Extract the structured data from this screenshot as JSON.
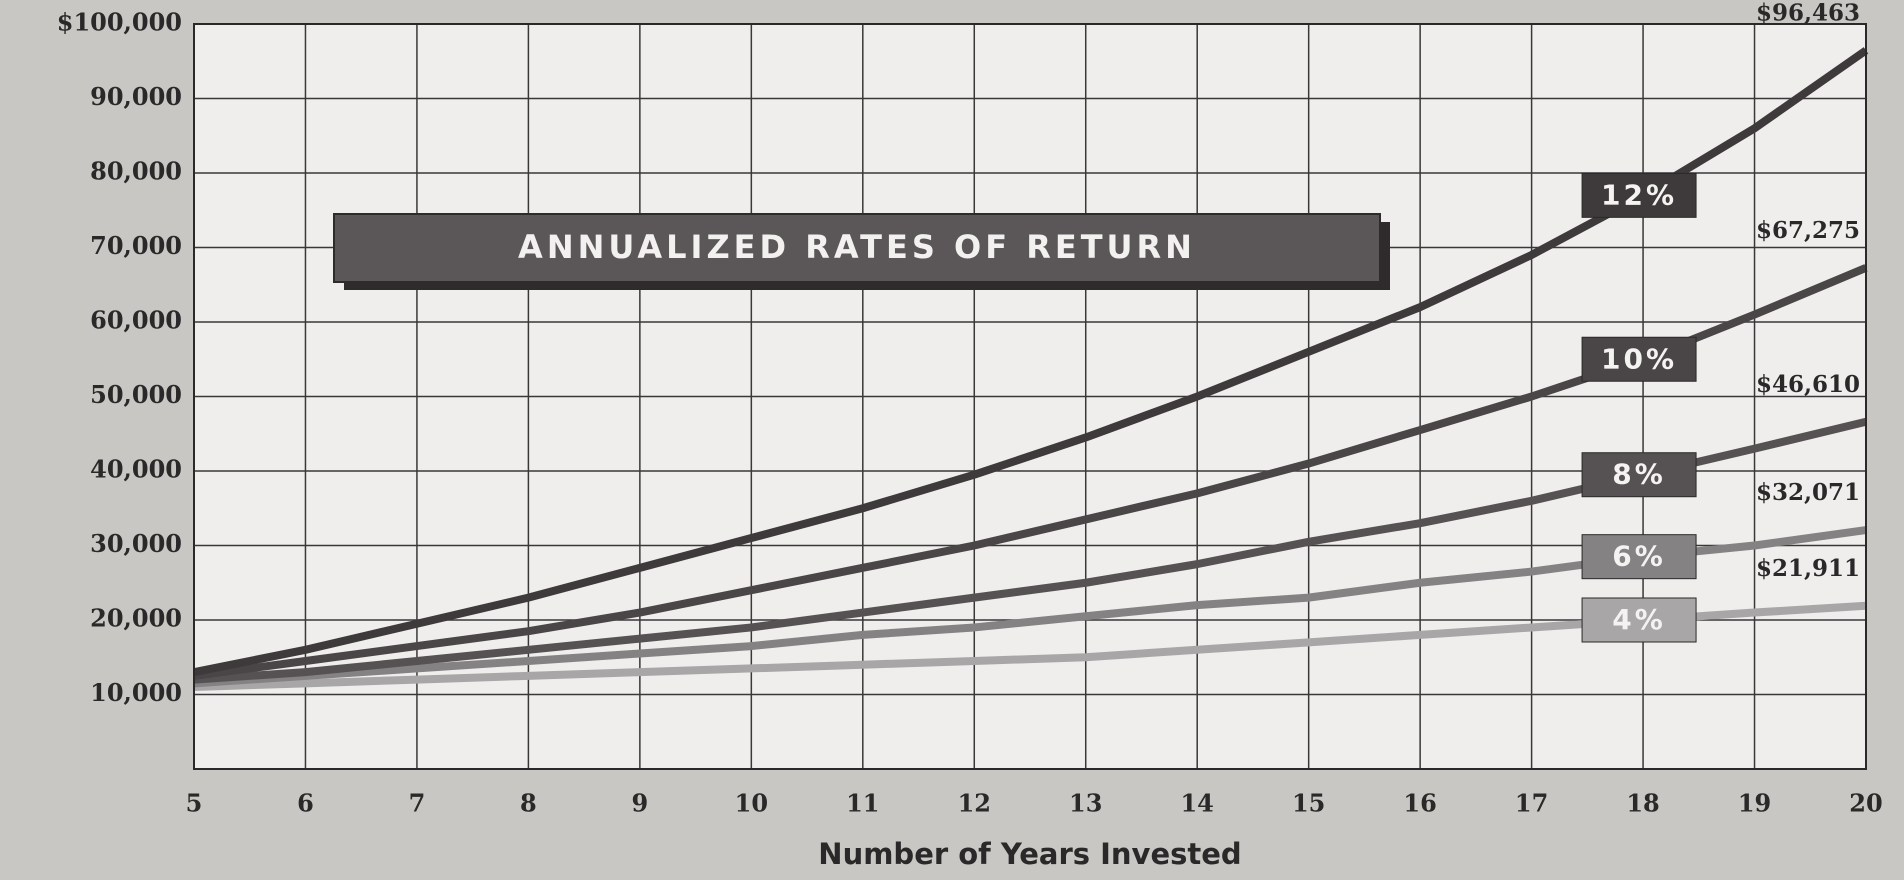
{
  "chart_data": {
    "type": "line",
    "title": "ANNUALIZED RATES OF RETURN",
    "x_label": "Number of Years Invested",
    "x": [
      5,
      6,
      7,
      8,
      9,
      10,
      11,
      12,
      13,
      14,
      15,
      16,
      17,
      18,
      19,
      20
    ],
    "xlim": [
      5,
      20
    ],
    "xticks": [
      5,
      6,
      7,
      8,
      9,
      10,
      11,
      12,
      13,
      14,
      15,
      16,
      17,
      18,
      19,
      20
    ],
    "ylim": [
      0,
      100000
    ],
    "yticks": [
      {
        "value": 10000,
        "label": "10,000"
      },
      {
        "value": 20000,
        "label": "20,000"
      },
      {
        "value": 30000,
        "label": "30,000"
      },
      {
        "value": 40000,
        "label": "40,000"
      },
      {
        "value": 50000,
        "label": "50,000"
      },
      {
        "value": 60000,
        "label": "60,000"
      },
      {
        "value": 70000,
        "label": "70,000"
      },
      {
        "value": 80000,
        "label": "80,000"
      },
      {
        "value": 90000,
        "label": "90,000"
      },
      {
        "value": 100000,
        "label": "$100,000"
      }
    ],
    "grid": true,
    "series": [
      {
        "name": "12%",
        "color": "#3e3a3b",
        "values": [
          13000,
          16000,
          19500,
          23000,
          27000,
          31000,
          35000,
          39500,
          44500,
          50000,
          56000,
          62000,
          69000,
          77000,
          86000,
          96463
        ],
        "value_labels": [
          null,
          null,
          null,
          null,
          null,
          null,
          null,
          null,
          null,
          null,
          null,
          null,
          null,
          null,
          null,
          "$96,463"
        ]
      },
      {
        "name": "10%",
        "color": "#4a4647",
        "values": [
          12500,
          14500,
          16500,
          18500,
          21000,
          24000,
          27000,
          30000,
          33500,
          37000,
          41000,
          45500,
          50000,
          55000,
          61000,
          67275
        ],
        "value_labels": [
          null,
          null,
          null,
          null,
          null,
          null,
          null,
          null,
          null,
          null,
          null,
          null,
          null,
          null,
          null,
          "$67,275"
        ]
      },
      {
        "name": "8%",
        "color": "#565253",
        "values": [
          12000,
          13000,
          14500,
          16000,
          17500,
          19000,
          21000,
          23000,
          25000,
          27500,
          30500,
          33000,
          36000,
          39500,
          43000,
          46610
        ],
        "value_labels": [
          null,
          null,
          null,
          null,
          null,
          null,
          null,
          null,
          null,
          null,
          null,
          null,
          null,
          null,
          null,
          "$46,610"
        ]
      },
      {
        "name": "6%",
        "color": "#858284",
        "values": [
          11500,
          12500,
          13500,
          14500,
          15500,
          16500,
          18000,
          19000,
          20500,
          22000,
          23000,
          25000,
          26500,
          28500,
          30000,
          32071
        ],
        "value_labels": [
          null,
          null,
          null,
          null,
          null,
          null,
          null,
          null,
          null,
          null,
          null,
          null,
          null,
          null,
          null,
          "$32,071"
        ]
      },
      {
        "name": "4%",
        "color": "#a8a6a7",
        "values": [
          11000,
          11500,
          12000,
          12500,
          13000,
          13500,
          14000,
          14500,
          15000,
          16000,
          17000,
          18000,
          19000,
          20000,
          21000,
          21911
        ],
        "value_labels": [
          null,
          null,
          null,
          null,
          null,
          null,
          null,
          null,
          null,
          null,
          null,
          null,
          null,
          null,
          null,
          "$21,911"
        ]
      }
    ]
  }
}
